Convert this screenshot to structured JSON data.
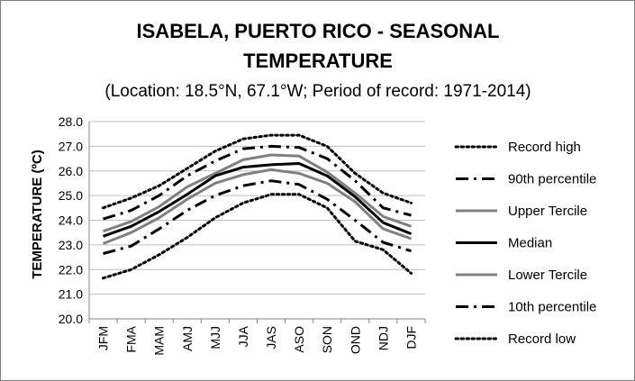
{
  "chart_data": {
    "type": "line",
    "title_line1": "ISABELA, PUERTO RICO - SEASONAL",
    "title_line2": "TEMPERATURE",
    "subtitle": "(Location: 18.5°N, 67.1°W; Period of record: 1971-2014)",
    "ylabel": "TEMPERATURE (ºC)",
    "xlabel": "",
    "categories": [
      "JFM",
      "FMA",
      "MAM",
      "AMJ",
      "MJJ",
      "JJA",
      "JAS",
      "ASO",
      "SON",
      "OND",
      "NDJ",
      "DJF"
    ],
    "ylim": [
      20.0,
      28.0
    ],
    "yticks": [
      "20.0",
      "21.0",
      "22.0",
      "23.0",
      "24.0",
      "25.0",
      "26.0",
      "27.0",
      "28.0"
    ],
    "grid": true,
    "legend_position": "right",
    "series": [
      {
        "name": "Record high",
        "style": "dotted",
        "color": "#000000",
        "values": [
          24.5,
          24.9,
          25.4,
          26.1,
          26.8,
          27.3,
          27.45,
          27.45,
          27.0,
          25.9,
          25.1,
          24.7
        ]
      },
      {
        "name": "90th percentile",
        "style": "dashdot",
        "color": "#000000",
        "values": [
          24.05,
          24.4,
          25.0,
          25.8,
          26.4,
          26.9,
          27.0,
          26.95,
          26.5,
          25.6,
          24.5,
          24.2
        ]
      },
      {
        "name": "Upper Tercile",
        "style": "solid",
        "color": "#808080",
        "values": [
          23.55,
          23.95,
          24.55,
          25.35,
          25.9,
          26.45,
          26.65,
          26.6,
          25.95,
          25.1,
          24.15,
          23.75
        ]
      },
      {
        "name": "Median",
        "style": "solid",
        "color": "#000000",
        "values": [
          23.35,
          23.75,
          24.35,
          25.05,
          25.8,
          26.15,
          26.25,
          26.3,
          25.8,
          24.95,
          23.9,
          23.45
        ]
      },
      {
        "name": "Lower Tercile",
        "style": "solid",
        "color": "#808080",
        "values": [
          23.05,
          23.5,
          24.1,
          24.85,
          25.5,
          25.85,
          26.05,
          25.9,
          25.5,
          24.75,
          23.65,
          23.25
        ]
      },
      {
        "name": "10th percentile",
        "style": "dashdot",
        "color": "#000000",
        "values": [
          22.65,
          22.95,
          23.65,
          24.4,
          25.0,
          25.4,
          25.6,
          25.45,
          24.85,
          24.0,
          23.1,
          22.75
        ]
      },
      {
        "name": "Record low",
        "style": "dotted",
        "color": "#000000",
        "values": [
          21.65,
          22.0,
          22.6,
          23.3,
          24.1,
          24.7,
          25.05,
          25.05,
          24.5,
          23.15,
          22.8,
          21.85
        ]
      }
    ]
  }
}
